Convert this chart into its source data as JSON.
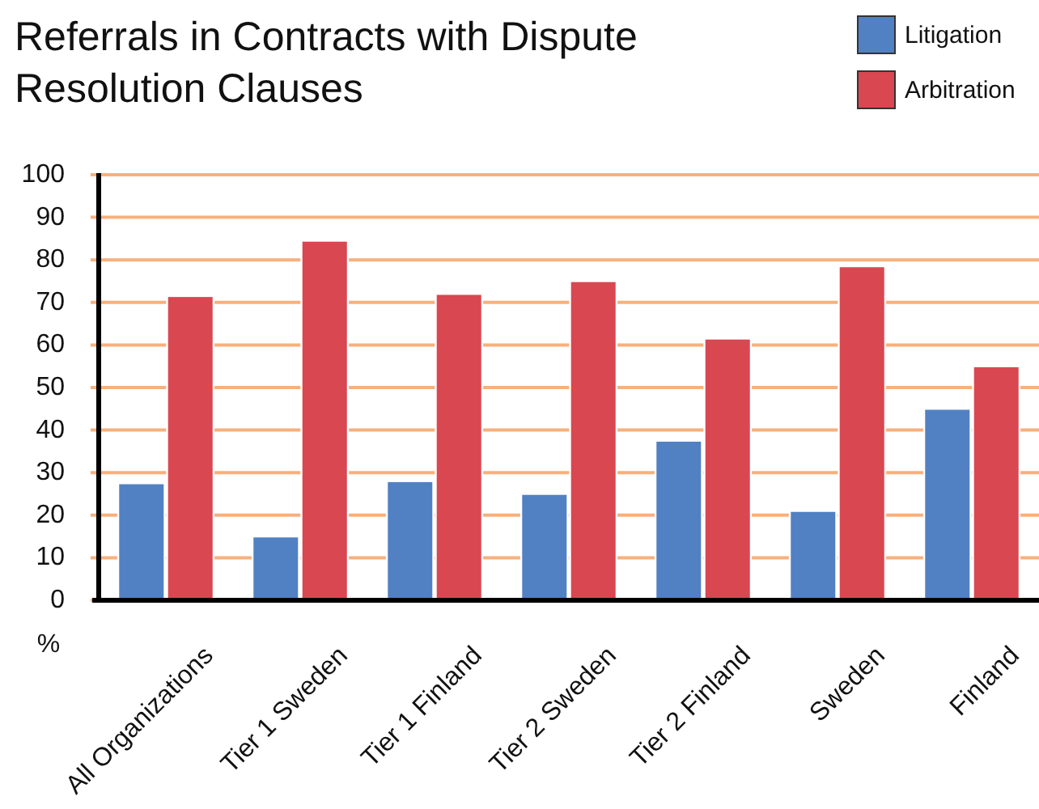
{
  "chart_data": {
    "type": "bar",
    "title": "Referrals in Contracts with Dispute Resolution Clauses",
    "ylabel": "%",
    "categories": [
      "All Organizations",
      "Tier 1 Sweden",
      "Tier 1 Finland",
      "Tier 2 Sweden",
      "Tier 2 Finland",
      "Sweden",
      "Finland"
    ],
    "series": [
      {
        "name": "Litigation",
        "color": "#5181c3",
        "values": [
          27.5,
          15,
          28,
          25,
          37.5,
          21,
          45
        ]
      },
      {
        "name": "Arbitration",
        "color": "#d94751",
        "values": [
          71.5,
          84.5,
          72,
          75,
          61.5,
          78.5,
          55
        ]
      }
    ],
    "ylim": [
      0,
      100
    ],
    "yticks": [
      0,
      10,
      20,
      30,
      40,
      50,
      60,
      70,
      80,
      90,
      100
    ],
    "grid": "y",
    "legend": "top right"
  }
}
